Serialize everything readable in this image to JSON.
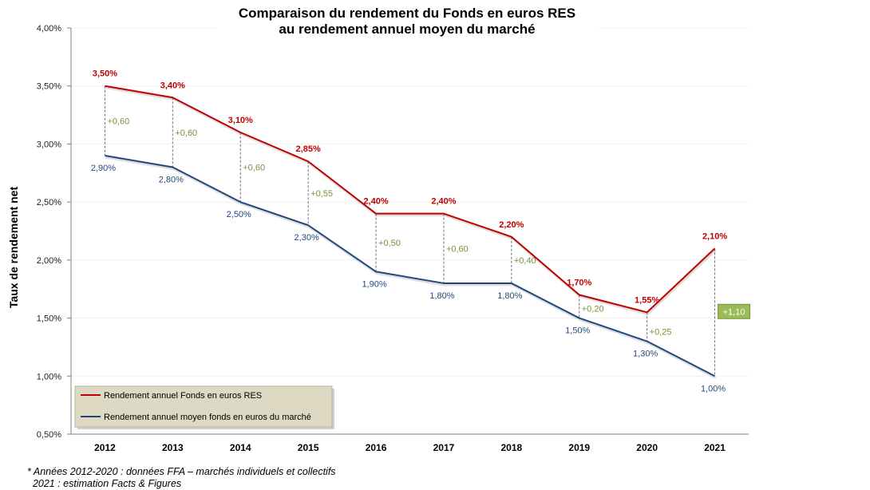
{
  "chart_data": {
    "type": "line",
    "title_lines": [
      "Comparaison du rendement du Fonds en euros RES",
      "au rendement annuel moyen du marché"
    ],
    "xlabel": "",
    "ylabel": "Taux de rendement net",
    "categories": [
      "2012",
      "2013",
      "2014",
      "2015",
      "2016",
      "2017",
      "2018",
      "2019",
      "2020",
      "2021"
    ],
    "ylim": [
      0.5,
      4.0
    ],
    "yticks": [
      0.5,
      1.0,
      1.5,
      2.0,
      2.5,
      3.0,
      3.5,
      4.0
    ],
    "ytick_labels": [
      "0,50%",
      "1,00%",
      "1,50%",
      "2,00%",
      "2,50%",
      "3,00%",
      "3,50%",
      "4,00%"
    ],
    "grid": true,
    "series": [
      {
        "name": "Rendement annuel Fonds en euros RES",
        "color": "#c00000",
        "values": [
          3.5,
          3.4,
          3.1,
          2.85,
          2.4,
          2.4,
          2.2,
          1.7,
          1.55,
          2.1
        ],
        "labels": [
          "3,50%",
          "3,40%",
          "3,10%",
          "2,85%",
          "2,40%",
          "2,40%",
          "2,20%",
          "1,70%",
          "1,55%",
          "2,10%"
        ]
      },
      {
        "name": "Rendement annuel moyen fonds en euros du marché",
        "color": "#1f497d",
        "values": [
          2.9,
          2.8,
          2.5,
          2.3,
          1.9,
          1.8,
          1.8,
          1.5,
          1.3,
          1.0
        ],
        "labels": [
          "2,90%",
          "2,80%",
          "2,50%",
          "2,30%",
          "1,90%",
          "1,80%",
          "1,80%",
          "1,50%",
          "1,30%",
          "1,00%"
        ]
      }
    ],
    "differences": {
      "values": [
        0.6,
        0.6,
        0.6,
        0.55,
        0.5,
        0.6,
        0.4,
        0.2,
        0.25,
        1.1
      ],
      "labels": [
        "+0,60",
        "+0,60",
        "+0,60",
        "+0,55",
        "+0,50",
        "+0,60",
        "+0,40",
        "+0,20",
        "+0,25",
        "+1,10"
      ],
      "color": "#76923c",
      "highlighted_index": 9,
      "highlight_fill": "#9bbb59"
    },
    "legend": {
      "position": "bottom-left",
      "background": "#ddd9c3",
      "entries": [
        "Rendement annuel Fonds en euros RES",
        "Rendement annuel moyen fonds en euros du marché"
      ]
    }
  },
  "footnote": {
    "line1": "* Années 2012-2020 : données FFA – marchés individuels et collectifs",
    "line2": "  2021 : estimation Facts & Figures"
  }
}
